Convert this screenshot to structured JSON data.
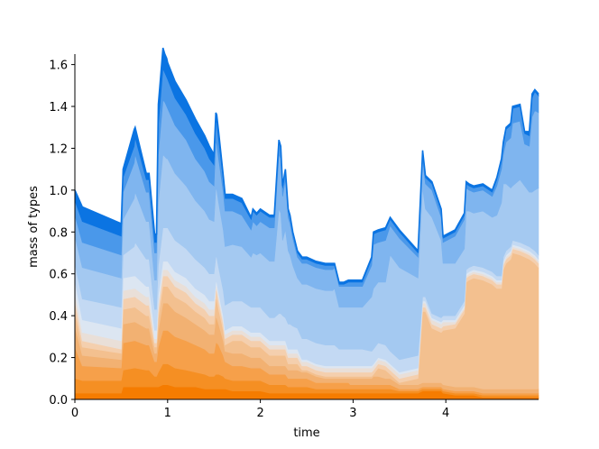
{
  "chart_data": {
    "type": "area",
    "stacked": true,
    "xlabel": "time",
    "ylabel": "mass of types",
    "xlim": [
      0,
      5
    ],
    "ylim": [
      0,
      1.65
    ],
    "x_ticks": [
      0,
      1,
      2,
      3,
      4
    ],
    "y_ticks": [
      0.0,
      0.2,
      0.4,
      0.6,
      0.8,
      1.0,
      1.2,
      1.4,
      1.6
    ],
    "grid": false,
    "legend": "none",
    "x": [
      0,
      0.08,
      0.5,
      0.52,
      0.64,
      0.65,
      0.77,
      0.8,
      0.86,
      0.88,
      0.9,
      0.95,
      0.97,
      0.99,
      1.0,
      1.08,
      1.2,
      1.3,
      1.4,
      1.45,
      1.5,
      1.52,
      1.53,
      1.55,
      1.6,
      1.62,
      1.7,
      1.8,
      1.9,
      1.92,
      1.96,
      2.0,
      2.1,
      2.15,
      2.2,
      2.22,
      2.24,
      2.27,
      2.3,
      2.32,
      2.35,
      2.4,
      2.45,
      2.5,
      2.6,
      2.7,
      2.78,
      2.8,
      2.85,
      2.9,
      2.95,
      2.97,
      3.1,
      3.2,
      3.22,
      3.27,
      3.35,
      3.4,
      3.5,
      3.7,
      3.75,
      3.78,
      3.85,
      3.95,
      3.97,
      4.1,
      4.2,
      4.22,
      4.25,
      4.3,
      4.4,
      4.5,
      4.55,
      4.6,
      4.62,
      4.65,
      4.7,
      4.72,
      4.8,
      4.85,
      4.9,
      4.93,
      4.96,
      5.0
    ],
    "series": [
      {
        "color": "#f57c00",
        "values": [
          0.03,
          0.03,
          0.03,
          0.06,
          0.06,
          0.06,
          0.06,
          0.06,
          0.06,
          0.06,
          0.06,
          0.07,
          0.07,
          0.07,
          0.07,
          0.06,
          0.06,
          0.06,
          0.05,
          0.05,
          0.05,
          0.05,
          0.05,
          0.05,
          0.05,
          0.05,
          0.04,
          0.04,
          0.04,
          0.04,
          0.04,
          0.04,
          0.03,
          0.03,
          0.03,
          0.03,
          0.03,
          0.03,
          0.03,
          0.03,
          0.03,
          0.03,
          0.03,
          0.03,
          0.03,
          0.03,
          0.03,
          0.03,
          0.03,
          0.03,
          0.03,
          0.03,
          0.03,
          0.03,
          0.03,
          0.03,
          0.03,
          0.03,
          0.03,
          0.03,
          0.04,
          0.04,
          0.04,
          0.04,
          0.03,
          0.02,
          0.02,
          0.02,
          0.02,
          0.02,
          0.01,
          0.01,
          0.01,
          0.01,
          0.01,
          0.01,
          0.01,
          0.01,
          0.01,
          0.01,
          0.01,
          0.01,
          0.01,
          0.01
        ]
      },
      {
        "color": "#f58f23",
        "values": [
          0.07,
          0.06,
          0.06,
          0.08,
          0.09,
          0.09,
          0.08,
          0.08,
          0.05,
          0.05,
          0.07,
          0.1,
          0.1,
          0.1,
          0.1,
          0.09,
          0.08,
          0.07,
          0.07,
          0.06,
          0.06,
          0.07,
          0.07,
          0.07,
          0.06,
          0.05,
          0.05,
          0.05,
          0.05,
          0.05,
          0.05,
          0.05,
          0.04,
          0.04,
          0.04,
          0.04,
          0.04,
          0.04,
          0.03,
          0.03,
          0.03,
          0.03,
          0.03,
          0.03,
          0.02,
          0.02,
          0.02,
          0.02,
          0.02,
          0.02,
          0.02,
          0.02,
          0.02,
          0.02,
          0.02,
          0.02,
          0.02,
          0.02,
          0.01,
          0.01,
          0.01,
          0.01,
          0.01,
          0.01,
          0.01,
          0.01,
          0.01,
          0.01,
          0.01,
          0.01,
          0.01,
          0.01,
          0.01,
          0.01,
          0.01,
          0.01,
          0.01,
          0.01,
          0.01,
          0.01,
          0.01,
          0.01,
          0.01,
          0.01
        ]
      },
      {
        "color": "#f6a04a",
        "values": [
          0.15,
          0.07,
          0.06,
          0.13,
          0.13,
          0.13,
          0.12,
          0.12,
          0.07,
          0.07,
          0.12,
          0.16,
          0.16,
          0.16,
          0.16,
          0.15,
          0.14,
          0.13,
          0.12,
          0.11,
          0.11,
          0.15,
          0.15,
          0.14,
          0.1,
          0.08,
          0.07,
          0.07,
          0.06,
          0.06,
          0.06,
          0.06,
          0.05,
          0.05,
          0.05,
          0.05,
          0.05,
          0.05,
          0.04,
          0.04,
          0.04,
          0.04,
          0.04,
          0.04,
          0.03,
          0.03,
          0.03,
          0.03,
          0.03,
          0.03,
          0.03,
          0.02,
          0.02,
          0.02,
          0.02,
          0.02,
          0.02,
          0.02,
          0.01,
          0.01,
          0.01,
          0.01,
          0.01,
          0.01,
          0.01,
          0.01,
          0.01,
          0.01,
          0.01,
          0.01,
          0.01,
          0.01,
          0.01,
          0.01,
          0.01,
          0.01,
          0.01,
          0.01,
          0.01,
          0.01,
          0.01,
          0.01,
          0.01,
          0.01
        ]
      },
      {
        "color": "#f2b172",
        "values": [
          0.1,
          0.05,
          0.04,
          0.09,
          0.09,
          0.09,
          0.08,
          0.08,
          0.04,
          0.04,
          0.08,
          0.13,
          0.13,
          0.13,
          0.13,
          0.12,
          0.11,
          0.1,
          0.09,
          0.09,
          0.09,
          0.12,
          0.12,
          0.1,
          0.07,
          0.05,
          0.06,
          0.06,
          0.05,
          0.05,
          0.05,
          0.05,
          0.04,
          0.04,
          0.04,
          0.04,
          0.04,
          0.04,
          0.04,
          0.04,
          0.04,
          0.04,
          0.03,
          0.03,
          0.03,
          0.02,
          0.02,
          0.02,
          0.02,
          0.02,
          0.02,
          0.03,
          0.03,
          0.03,
          0.04,
          0.04,
          0.03,
          0.03,
          0.02,
          0.02,
          0.02,
          0.02,
          0.02,
          0.02,
          0.02,
          0.02,
          0.02,
          0.02,
          0.02,
          0.02,
          0.02,
          0.02,
          0.02,
          0.02,
          0.02,
          0.02,
          0.02,
          0.02,
          0.02,
          0.02,
          0.02,
          0.02,
          0.02,
          0.02
        ]
      },
      {
        "color": "#f3c08f",
        "values": [
          0.07,
          0.04,
          0.03,
          0.07,
          0.07,
          0.07,
          0.06,
          0.06,
          0.03,
          0.03,
          0.06,
          0.08,
          0.08,
          0.08,
          0.08,
          0.07,
          0.07,
          0.06,
          0.06,
          0.05,
          0.05,
          0.09,
          0.09,
          0.07,
          0.05,
          0.03,
          0.06,
          0.06,
          0.05,
          0.05,
          0.05,
          0.05,
          0.05,
          0.05,
          0.05,
          0.05,
          0.05,
          0.05,
          0.03,
          0.03,
          0.03,
          0.03,
          0.01,
          0.01,
          0.01,
          0.01,
          0.01,
          0.01,
          0.01,
          0.01,
          0.01,
          0.01,
          0.01,
          0.01,
          0.01,
          0.04,
          0.04,
          0.02,
          0.01,
          0.03,
          0.34,
          0.34,
          0.26,
          0.24,
          0.26,
          0.28,
          0.35,
          0.5,
          0.51,
          0.52,
          0.52,
          0.5,
          0.48,
          0.48,
          0.57,
          0.6,
          0.62,
          0.65,
          0.64,
          0.63,
          0.62,
          0.61,
          0.6,
          0.58
        ]
      },
      {
        "color": "#f4cfae",
        "values": [
          0.05,
          0.03,
          0.02,
          0.05,
          0.05,
          0.05,
          0.05,
          0.05,
          0.02,
          0.02,
          0.04,
          0.05,
          0.05,
          0.05,
          0.05,
          0.05,
          0.05,
          0.04,
          0.04,
          0.04,
          0.04,
          0.04,
          0.04,
          0.04,
          0.03,
          0.03,
          0.03,
          0.03,
          0.03,
          0.03,
          0.03,
          0.03,
          0.03,
          0.03,
          0.03,
          0.03,
          0.03,
          0.03,
          0.03,
          0.03,
          0.03,
          0.03,
          0.02,
          0.02,
          0.02,
          0.02,
          0.02,
          0.02,
          0.02,
          0.02,
          0.02,
          0.02,
          0.02,
          0.02,
          0.02,
          0.02,
          0.02,
          0.02,
          0.02,
          0.02,
          0.02,
          0.02,
          0.02,
          0.02,
          0.02,
          0.02,
          0.02,
          0.02,
          0.02,
          0.02,
          0.02,
          0.02,
          0.02,
          0.02,
          0.02,
          0.02,
          0.02,
          0.02,
          0.02,
          0.02,
          0.02,
          0.02,
          0.02,
          0.02
        ]
      },
      {
        "color": "#e9dfd8",
        "values": [
          0.04,
          0.04,
          0.04,
          0.04,
          0.04,
          0.04,
          0.04,
          0.04,
          0.02,
          0.02,
          0.03,
          0.03,
          0.03,
          0.03,
          0.03,
          0.03,
          0.03,
          0.03,
          0.03,
          0.03,
          0.03,
          0.02,
          0.02,
          0.02,
          0.02,
          0.02,
          0.02,
          0.02,
          0.02,
          0.02,
          0.02,
          0.02,
          0.02,
          0.02,
          0.02,
          0.02,
          0.02,
          0.02,
          0.02,
          0.02,
          0.02,
          0.02,
          0.02,
          0.02,
          0.02,
          0.02,
          0.02,
          0.02,
          0.02,
          0.02,
          0.02,
          0.02,
          0.02,
          0.02,
          0.02,
          0.02,
          0.02,
          0.02,
          0.02,
          0.02,
          0.02,
          0.02,
          0.02,
          0.02,
          0.02,
          0.01,
          0.01,
          0.01,
          0.01,
          0.01,
          0.01,
          0.01,
          0.01,
          0.01,
          0.01,
          0.01,
          0.01,
          0.01,
          0.01,
          0.01,
          0.01,
          0.01,
          0.01,
          0.01
        ]
      },
      {
        "color": "#dce6f2",
        "values": [
          0.06,
          0.06,
          0.06,
          0.06,
          0.06,
          0.06,
          0.05,
          0.05,
          0.04,
          0.04,
          0.04,
          0.04,
          0.04,
          0.04,
          0.04,
          0.04,
          0.04,
          0.04,
          0.04,
          0.04,
          0.04,
          0.02,
          0.02,
          0.02,
          0.02,
          0.02,
          0.02,
          0.02,
          0.02,
          0.02,
          0.02,
          0.02,
          0.02,
          0.02,
          0.02,
          0.02,
          0.02,
          0.02,
          0.02,
          0.02,
          0.02,
          0.02,
          0.01,
          0.01,
          0.01,
          0.01,
          0.01,
          0.01,
          0.01,
          0.01,
          0.01,
          0.01,
          0.01,
          0.01,
          0.01,
          0.01,
          0.01,
          0.01,
          0.01,
          0.01,
          0.01,
          0.01,
          0.01,
          0.01,
          0.01,
          0.01,
          0.01,
          0.01,
          0.01,
          0.01,
          0.01,
          0.01,
          0.01,
          0.01,
          0.01,
          0.01,
          0.01,
          0.01,
          0.01,
          0.01,
          0.01,
          0.01,
          0.01,
          0.01
        ]
      },
      {
        "color": "#c3d9f3",
        "values": [
          0.08,
          0.1,
          0.1,
          0.11,
          0.14,
          0.16,
          0.13,
          0.13,
          0.1,
          0.1,
          0.14,
          0.16,
          0.16,
          0.16,
          0.16,
          0.15,
          0.14,
          0.14,
          0.13,
          0.13,
          0.13,
          0.12,
          0.12,
          0.12,
          0.12,
          0.12,
          0.12,
          0.12,
          0.12,
          0.12,
          0.12,
          0.12,
          0.11,
          0.11,
          0.13,
          0.13,
          0.12,
          0.11,
          0.12,
          0.12,
          0.11,
          0.1,
          0.1,
          0.1,
          0.1,
          0.1,
          0.1,
          0.1,
          0.08,
          0.08,
          0.08,
          0.08,
          0.08,
          0.07,
          0.07,
          0.07,
          0.07,
          0.06,
          0.06,
          0.06,
          0.02,
          0.02,
          0.02,
          0.02,
          0.02,
          0.02,
          0.02,
          0.02,
          0.02,
          0.02,
          0.02,
          0.02,
          0.02,
          0.02,
          0.02,
          0.02,
          0.02,
          0.02,
          0.02,
          0.02,
          0.02,
          0.02,
          0.02,
          0.02
        ]
      },
      {
        "color": "#a4c9f1",
        "values": [
          0.13,
          0.15,
          0.14,
          0.17,
          0.23,
          0.24,
          0.18,
          0.18,
          0.14,
          0.14,
          0.3,
          0.35,
          0.34,
          0.33,
          0.33,
          0.32,
          0.3,
          0.28,
          0.27,
          0.26,
          0.25,
          0.33,
          0.32,
          0.31,
          0.29,
          0.28,
          0.27,
          0.26,
          0.24,
          0.26,
          0.25,
          0.26,
          0.27,
          0.27,
          0.5,
          0.48,
          0.36,
          0.42,
          0.35,
          0.33,
          0.29,
          0.24,
          0.26,
          0.26,
          0.26,
          0.26,
          0.26,
          0.27,
          0.2,
          0.2,
          0.2,
          0.2,
          0.2,
          0.26,
          0.29,
          0.29,
          0.3,
          0.46,
          0.44,
          0.37,
          0.52,
          0.42,
          0.46,
          0.37,
          0.25,
          0.25,
          0.25,
          0.28,
          0.27,
          0.25,
          0.27,
          0.26,
          0.29,
          0.35,
          0.35,
          0.32,
          0.28,
          0.26,
          0.3,
          0.28,
          0.26,
          0.27,
          0.29,
          0.32
        ]
      },
      {
        "color": "#7fb5ef",
        "values": [
          0.1,
          0.12,
          0.11,
          0.13,
          0.17,
          0.18,
          0.14,
          0.14,
          0.13,
          0.13,
          0.23,
          0.26,
          0.26,
          0.25,
          0.24,
          0.23,
          0.22,
          0.2,
          0.19,
          0.18,
          0.17,
          0.22,
          0.22,
          0.21,
          0.18,
          0.17,
          0.16,
          0.15,
          0.13,
          0.15,
          0.14,
          0.15,
          0.16,
          0.16,
          0.26,
          0.26,
          0.21,
          0.24,
          0.16,
          0.15,
          0.13,
          0.1,
          0.1,
          0.1,
          0.1,
          0.1,
          0.1,
          0.1,
          0.1,
          0.1,
          0.1,
          0.1,
          0.1,
          0.15,
          0.21,
          0.19,
          0.2,
          0.14,
          0.14,
          0.1,
          0.14,
          0.12,
          0.13,
          0.11,
          0.1,
          0.13,
          0.14,
          0.11,
          0.1,
          0.1,
          0.1,
          0.1,
          0.14,
          0.16,
          0.14,
          0.2,
          0.24,
          0.3,
          0.28,
          0.2,
          0.22,
          0.36,
          0.38,
          0.36
        ]
      },
      {
        "color": "#4a98ea",
        "values": [
          0.07,
          0.1,
          0.09,
          0.07,
          0.08,
          0.08,
          0.06,
          0.06,
          0.05,
          0.05,
          0.14,
          0.15,
          0.14,
          0.14,
          0.14,
          0.13,
          0.12,
          0.12,
          0.11,
          0.11,
          0.1,
          0.1,
          0.1,
          0.09,
          0.06,
          0.06,
          0.06,
          0.06,
          0.05,
          0.05,
          0.05,
          0.05,
          0.05,
          0.05,
          0.06,
          0.05,
          0.04,
          0.04,
          0.03,
          0.03,
          0.02,
          0.02,
          0.02,
          0.02,
          0.02,
          0.02,
          0.02,
          0.01,
          0.01,
          0.01,
          0.02,
          0.02,
          0.02,
          0.03,
          0.05,
          0.05,
          0.05,
          0.03,
          0.03,
          0.02,
          0.03,
          0.03,
          0.03,
          0.03,
          0.02,
          0.02,
          0.02,
          0.02,
          0.02,
          0.02,
          0.02,
          0.02,
          0.03,
          0.04,
          0.04,
          0.06,
          0.06,
          0.07,
          0.07,
          0.05,
          0.05,
          0.09,
          0.09,
          0.08
        ]
      },
      {
        "color": "#0b74e2",
        "values": [
          0.05,
          0.07,
          0.06,
          0.04,
          0.08,
          0.05,
          0.03,
          0.03,
          0.04,
          0.04,
          0.1,
          0.1,
          0.09,
          0.09,
          0.08,
          0.08,
          0.07,
          0.07,
          0.06,
          0.06,
          0.05,
          0.04,
          0.04,
          0.04,
          0.02,
          0.02,
          0.02,
          0.02,
          0.01,
          0.01,
          0.01,
          0.01,
          0.01,
          0.01,
          0.01,
          0.01,
          0.01,
          0.01,
          0.01,
          0.01,
          0.01,
          0.01,
          0.01,
          0.01,
          0.01,
          0.01,
          0.01,
          0.01,
          0.01,
          0.01,
          0.01,
          0.01,
          0.01,
          0.01,
          0.01,
          0.01,
          0.01,
          0.01,
          0.01,
          0.01,
          0.01,
          0.01,
          0.01,
          0.01,
          0.01,
          0.01,
          0.01,
          0.01,
          0.01,
          0.01,
          0.01,
          0.01,
          0.01,
          0.01,
          0.02,
          0.01,
          0.01,
          0.01,
          0.01,
          0.01,
          0.02,
          0.02,
          0.01,
          0.01
        ]
      }
    ]
  }
}
